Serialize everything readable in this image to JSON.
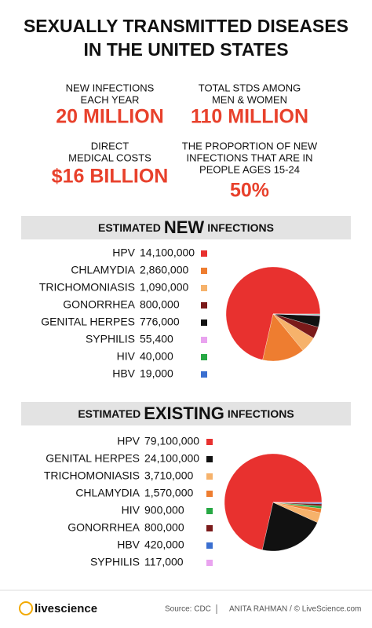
{
  "header": {
    "title_lines": [
      "SEXUALLY TRANSMITTED DISEASES",
      "IN THE UNITED STATES"
    ]
  },
  "stats": [
    {
      "label": [
        "NEW INFECTIONS",
        "EACH YEAR"
      ],
      "value": "20 MILLION"
    },
    {
      "label": [
        "TOTAL STDS AMONG",
        "MEN & WOMEN"
      ],
      "value": "110 MILLION"
    },
    {
      "label": [
        "DIRECT",
        "MEDICAL COSTS"
      ],
      "value": "$16 BILLION"
    },
    {
      "label": [
        "THE PROPORTION OF NEW",
        "INFECTIONS THAT ARE IN",
        "PEOPLE AGES 15-24"
      ],
      "value": "50%"
    }
  ],
  "chart_data": [
    {
      "type": "pie",
      "title_parts": [
        "ESTIMATED",
        "NEW",
        "INFECTIONS"
      ],
      "categories": [
        "HPV",
        "CHLAMYDIA",
        "TRICHOMONIASIS",
        "GONORRHEA",
        "GENITAL HERPES",
        "SYPHILIS",
        "HIV",
        "HBV"
      ],
      "values": [
        14100000,
        2860000,
        1090000,
        800000,
        776000,
        55400,
        40000,
        19000
      ],
      "value_labels": [
        "14,100,000",
        "2,860,000",
        "1,090,000",
        "800,000",
        "776,000",
        "55,400",
        "40,000",
        "19,000"
      ],
      "colors": [
        "#e8312f",
        "#ee7d30",
        "#f6b26b",
        "#7b1a1a",
        "#111111",
        "#e9a3ef",
        "#27a844",
        "#3a6fd0"
      ]
    },
    {
      "type": "pie",
      "title_parts": [
        "ESTIMATED",
        "EXISTING",
        "INFECTIONS"
      ],
      "categories": [
        "HPV",
        "GENITAL HERPES",
        "TRICHOMONIASIS",
        "CHLAMYDIA",
        "HIV",
        "GONORRHEA",
        "HBV",
        "SYPHILIS"
      ],
      "values": [
        79100000,
        24100000,
        3710000,
        1570000,
        900000,
        800000,
        420000,
        117000
      ],
      "value_labels": [
        "79,100,000",
        "24,100,000",
        "3,710,000",
        "1,570,000",
        "900,000",
        "800,000",
        "420,000",
        "117,000"
      ],
      "colors": [
        "#e8312f",
        "#111111",
        "#f6b26b",
        "#ee7d30",
        "#27a844",
        "#7b1a1a",
        "#3a6fd0",
        "#e9a3ef"
      ]
    }
  ],
  "footer": {
    "logo": "livescience",
    "source": "Source: CDC",
    "credit": "ANITA RAHMAN / © LiveScience.com"
  }
}
